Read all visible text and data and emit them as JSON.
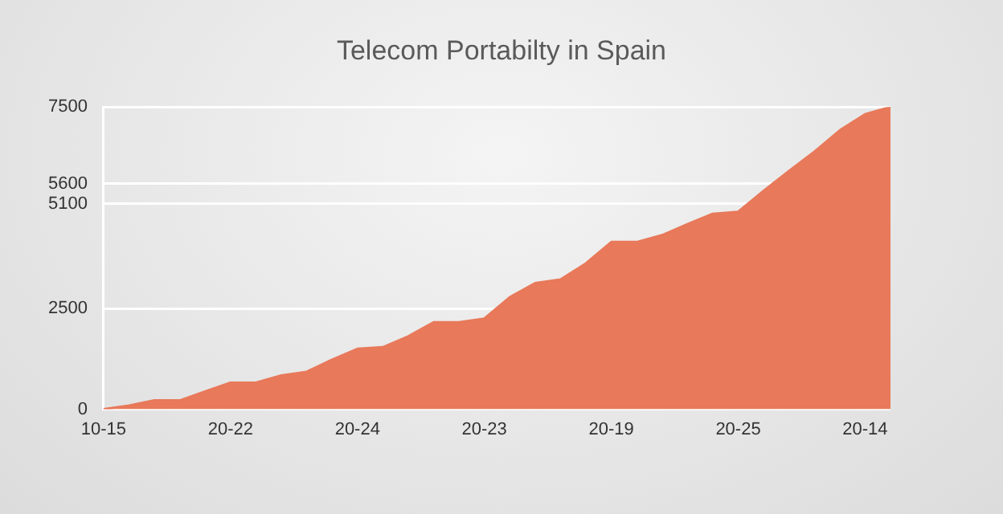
{
  "chart_data": {
    "type": "area",
    "title": "Telecom Portabilty in Spain",
    "categories": [
      "10-15",
      null,
      null,
      null,
      null,
      "20-22",
      null,
      null,
      null,
      null,
      "20-24",
      null,
      null,
      null,
      null,
      "20-23",
      null,
      null,
      null,
      null,
      "20-19",
      null,
      null,
      null,
      null,
      "20-25",
      null,
      null,
      null,
      null,
      "20-14",
      null
    ],
    "series": [
      {
        "color": "#e8795a",
        "values": [
          0,
          90,
          220,
          220,
          440,
          660,
          660,
          840,
          930,
          1230,
          1500,
          1540,
          1810,
          2160,
          2160,
          2250,
          2780,
          3130,
          3220,
          3620,
          4150,
          4150,
          4320,
          4590,
          4850,
          4900,
          5420,
          5910,
          6390,
          6920,
          7320,
          7500
        ]
      }
    ],
    "ylim": [
      0,
      7500
    ],
    "yticks": [
      0,
      2500,
      5100,
      5600,
      7500
    ],
    "grid": "y",
    "legend": false
  }
}
